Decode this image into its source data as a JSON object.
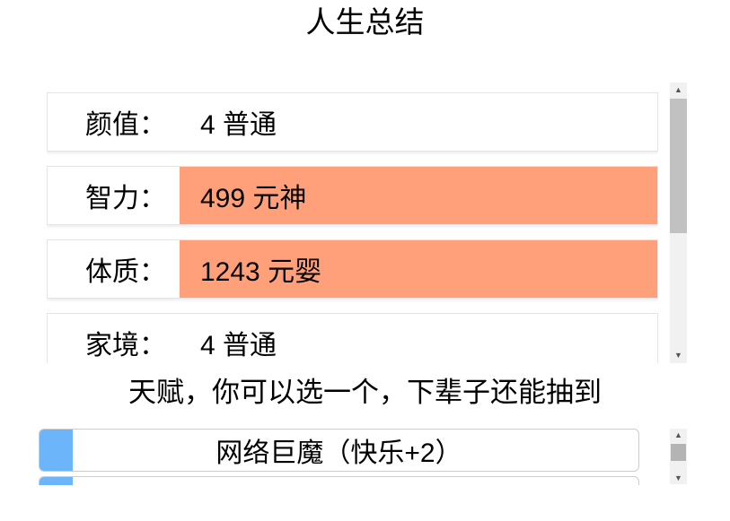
{
  "page": {
    "title": "人生总结"
  },
  "summary": {
    "rows": [
      {
        "label": "颜值：",
        "value": "4 普通",
        "grade": "normal"
      },
      {
        "label": "智力：",
        "value": "499 元神",
        "grade": "orange"
      },
      {
        "label": "体质：",
        "value": "1243 元婴",
        "grade": "orange"
      },
      {
        "label": "家境：",
        "value": "4 普通",
        "grade": "normal"
      }
    ]
  },
  "talents": {
    "hint": "天赋，你可以选一个，下辈子还能抽到",
    "options": [
      {
        "label": "网络巨魔（快乐+2）"
      },
      {
        "label": ""
      }
    ]
  },
  "icons": {
    "scroll_up": "▲",
    "scroll_down": "▼"
  },
  "colors": {
    "grade_orange_bg": "#ffa07a",
    "talent_accent_blue": "#6cb5fa",
    "scrollbar_track": "#f1f1f1",
    "scrollbar_thumb": "#c1c1c1"
  }
}
